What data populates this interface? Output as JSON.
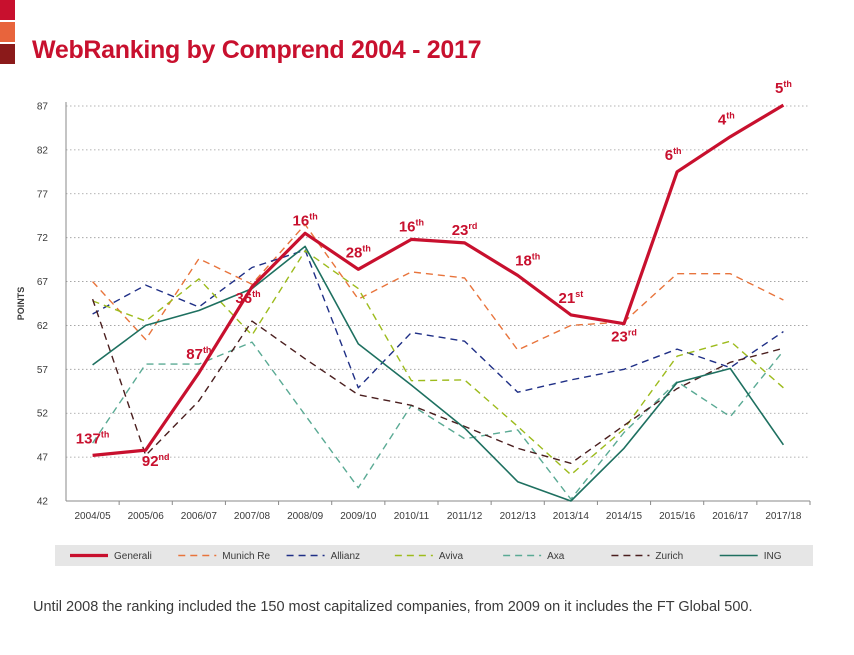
{
  "title": "WebRanking by Comprend 2004 - 2017",
  "footnote": "Until 2008 the ranking included the 150 most capitalized companies, from 2009 on it includes the FT Global 500.",
  "colors": {
    "accent": "#c8102e",
    "stripes": [
      "#c8102e",
      "#e8643c",
      "#8b1a1a"
    ],
    "grid": "#9a9a9a",
    "legend_bg": "#e6e6e6",
    "text": "#3a3a3a"
  },
  "chart_data": {
    "type": "line",
    "title": "WebRanking by Comprend 2004 - 2017",
    "xlabel": "",
    "ylabel": "POINTS",
    "ylim": [
      42,
      87
    ],
    "yticks": [
      42,
      47,
      52,
      57,
      62,
      67,
      72,
      77,
      82,
      87
    ],
    "grid": true,
    "legend_position": "bottom",
    "categories": [
      "2004/05",
      "2005/06",
      "2006/07",
      "2007/08",
      "2008/09",
      "2009/10",
      "2010/11",
      "2011/12",
      "2012/13",
      "2013/14",
      "2014/15",
      "2015/16",
      "2016/17",
      "2017/18"
    ],
    "series": [
      {
        "name": "Generali",
        "color": "#c8102e",
        "dash": "",
        "width": 3.2,
        "values": [
          47.2,
          47.8,
          56.6,
          66.4,
          72.5,
          68.4,
          71.8,
          71.4,
          67.7,
          63.2,
          62.2,
          79.5,
          83.5,
          87.1
        ]
      },
      {
        "name": "Munich Re",
        "color": "#e8743c",
        "dash": "7,5",
        "width": 1.4,
        "values": [
          67.0,
          60.4,
          69.6,
          66.7,
          73.5,
          65.0,
          68.1,
          67.4,
          59.2,
          62.0,
          62.4,
          67.9,
          67.9,
          64.9
        ]
      },
      {
        "name": "Allianz",
        "color": "#1f2f86",
        "dash": "7,5",
        "width": 1.4,
        "values": [
          63.3,
          66.6,
          64.1,
          68.6,
          70.6,
          54.9,
          61.2,
          60.2,
          54.4,
          55.8,
          57.0,
          59.3,
          57.2,
          61.3
        ]
      },
      {
        "name": "Aviva",
        "color": "#9dbb1c",
        "dash": "7,5",
        "width": 1.4,
        "values": [
          64.8,
          62.5,
          67.3,
          60.9,
          70.5,
          66.2,
          55.7,
          55.8,
          50.5,
          45.0,
          50.2,
          58.5,
          60.2,
          54.9
        ]
      },
      {
        "name": "Axa",
        "color": "#5aaa94",
        "dash": "7,5",
        "width": 1.4,
        "values": [
          48.6,
          57.6,
          57.6,
          60.1,
          51.8,
          43.5,
          52.9,
          49.1,
          50.1,
          42.2,
          49.8,
          55.6,
          51.6,
          59.1
        ]
      },
      {
        "name": "Zurich",
        "color": "#4a1e1e",
        "dash": "7,5",
        "width": 1.4,
        "values": [
          65.0,
          47.2,
          53.4,
          62.5,
          58.2,
          54.1,
          52.9,
          50.5,
          48.0,
          46.3,
          50.6,
          54.8,
          57.8,
          59.4
        ]
      },
      {
        "name": "ING",
        "color": "#1e7060",
        "dash": "",
        "width": 1.6,
        "values": [
          57.5,
          62.0,
          63.7,
          66.2,
          71.0,
          59.9,
          55.2,
          50.3,
          44.2,
          42.0,
          48.0,
          55.5,
          57.1,
          48.4
        ]
      }
    ],
    "annotations": [
      {
        "index": 0,
        "base": "137",
        "sup": "th"
      },
      {
        "index": 1,
        "base": "92",
        "sup": "nd"
      },
      {
        "index": 2,
        "base": "87",
        "sup": "th"
      },
      {
        "index": 3,
        "base": "36",
        "sup": "th"
      },
      {
        "index": 4,
        "base": "16",
        "sup": "th"
      },
      {
        "index": 5,
        "base": "28",
        "sup": "th"
      },
      {
        "index": 6,
        "base": "16",
        "sup": "th"
      },
      {
        "index": 7,
        "base": "23",
        "sup": "rd"
      },
      {
        "index": 8,
        "base": "18",
        "sup": "th"
      },
      {
        "index": 9,
        "base": "21",
        "sup": "st"
      },
      {
        "index": 10,
        "base": "23",
        "sup": "rd"
      },
      {
        "index": 11,
        "base": "6",
        "sup": "th"
      },
      {
        "index": 12,
        "base": "4",
        "sup": "th"
      },
      {
        "index": 13,
        "base": "5",
        "sup": "th"
      }
    ]
  }
}
